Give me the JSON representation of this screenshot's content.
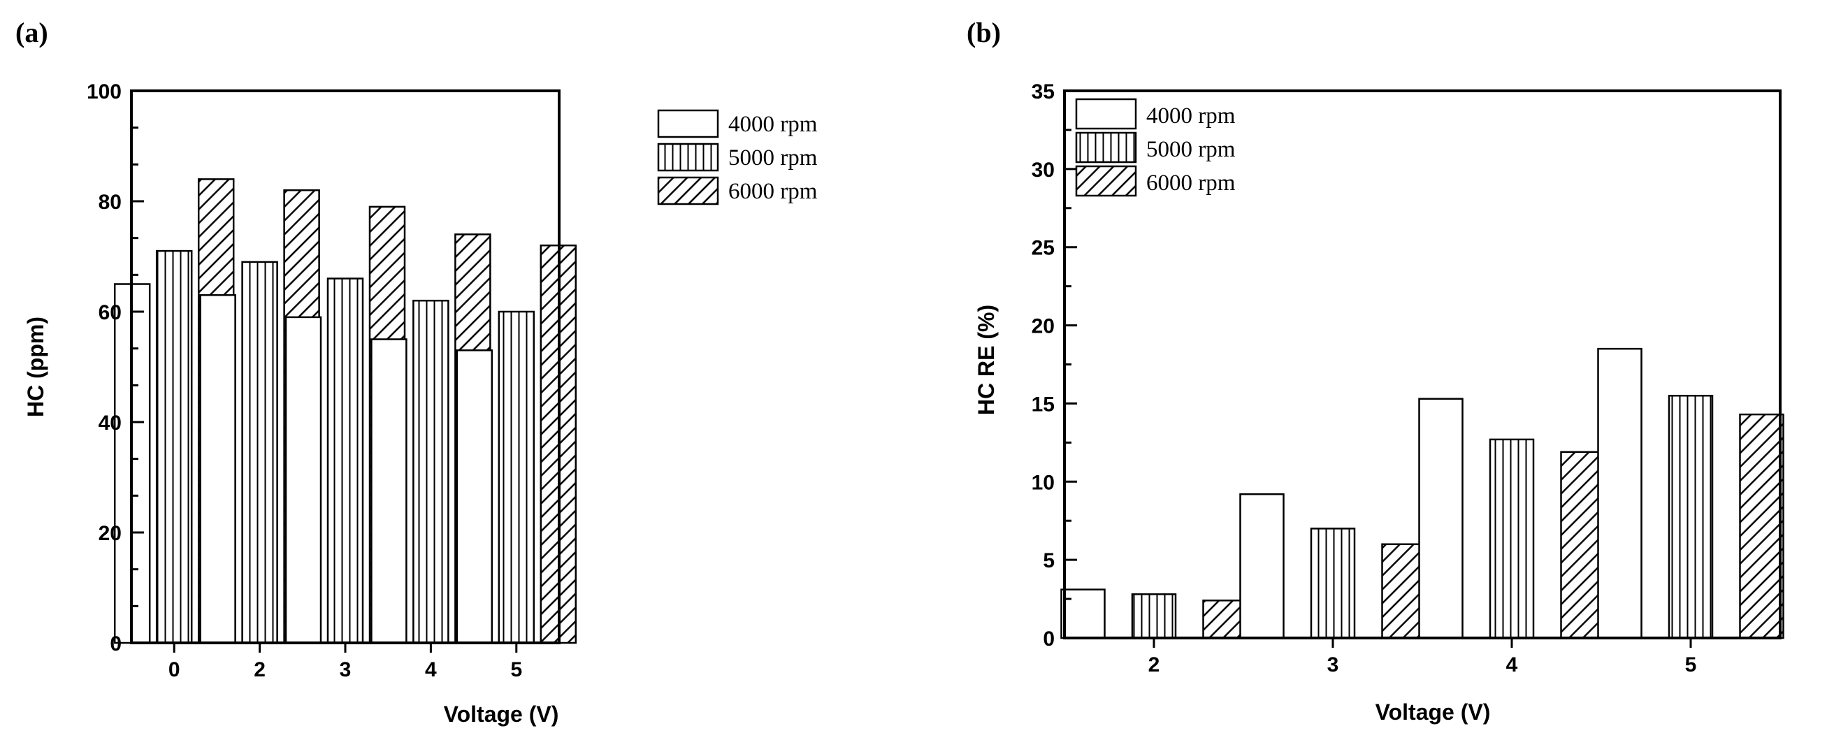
{
  "chart_data": [
    {
      "panel_label": "(a)",
      "type": "bar",
      "title": "",
      "xlabel": "Voltage (V)",
      "ylabel": "HC (ppm)",
      "categories": [
        "0",
        "2",
        "3",
        "4",
        "5"
      ],
      "ylim": [
        0,
        100
      ],
      "yticks": [
        "0",
        "20",
        "40",
        "60",
        "80",
        "100"
      ],
      "legend_position": "top-right",
      "series": [
        {
          "name": "4000 rpm",
          "pattern": "empty",
          "values": [
            65,
            63,
            59,
            55,
            53
          ]
        },
        {
          "name": "5000 rpm",
          "pattern": "vertical",
          "values": [
            71,
            69,
            66,
            62,
            60
          ]
        },
        {
          "name": "6000 rpm",
          "pattern": "diagonal",
          "values": [
            84,
            82,
            79,
            74,
            72
          ]
        }
      ]
    },
    {
      "panel_label": "(b)",
      "type": "bar",
      "title": "",
      "xlabel": "Voltage (V)",
      "ylabel": "HC RE (%)",
      "categories": [
        "2",
        "3",
        "4",
        "5"
      ],
      "ylim": [
        0,
        35
      ],
      "yticks": [
        "0",
        "5",
        "10",
        "15",
        "20",
        "25",
        "30",
        "35"
      ],
      "legend_position": "top-left",
      "series": [
        {
          "name": "4000 rpm",
          "pattern": "empty",
          "values": [
            3.1,
            9.2,
            15.3,
            18.5
          ]
        },
        {
          "name": "5000 rpm",
          "pattern": "vertical",
          "values": [
            2.8,
            7.0,
            12.7,
            15.5
          ]
        },
        {
          "name": "6000 rpm",
          "pattern": "diagonal",
          "values": [
            2.4,
            6.0,
            11.9,
            14.3
          ]
        }
      ]
    }
  ]
}
